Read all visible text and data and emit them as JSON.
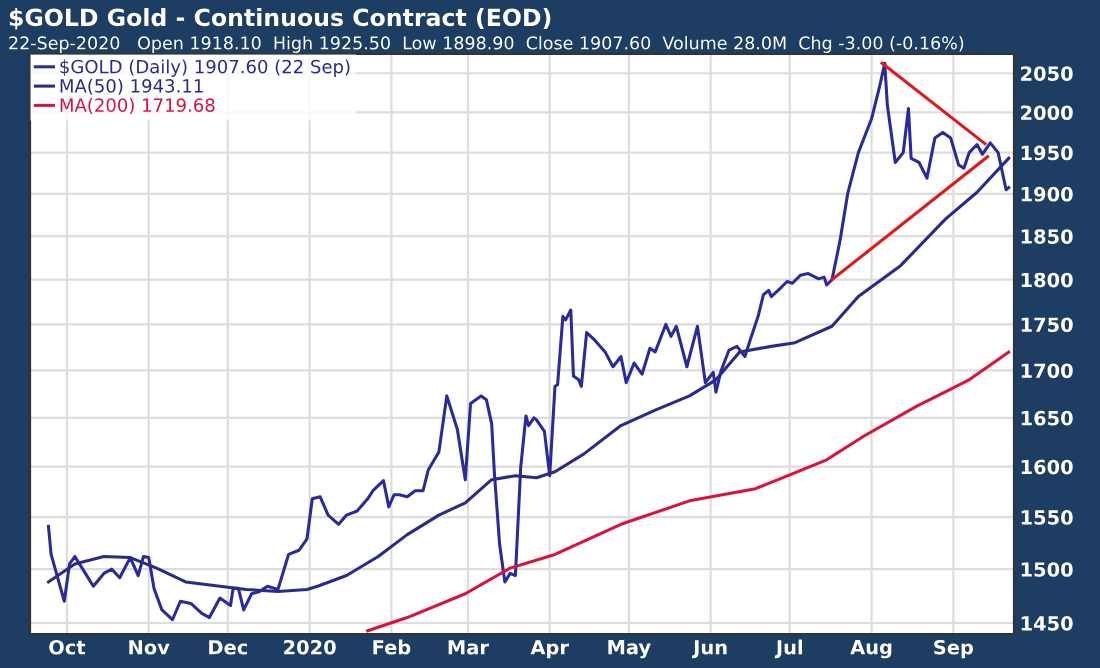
{
  "chart_data": {
    "type": "line",
    "title": "$GOLD Gold - Continuous Contract (EOD)",
    "subtitle": "22-Sep-2020   Open 1918.10  High 1925.50  Low 1898.90  Close 1907.60  Volume 28.0M  Chg -3.00 (-0.16%)",
    "log": "y",
    "grid": true,
    "legend": "top left",
    "marker": "none",
    "line_style": "solid",
    "xlim": [
      "2019-09-17",
      "2020-09-24"
    ],
    "ylim": [
      1440,
      2075
    ],
    "xticks": [
      {
        "value": "2019-10-01",
        "label": "Oct"
      },
      {
        "value": "2019-11-01",
        "label": "Nov"
      },
      {
        "value": "2019-12-01",
        "label": "Dec"
      },
      {
        "value": "2020-01-01",
        "label": "2020"
      },
      {
        "value": "2020-02-01",
        "label": "Feb"
      },
      {
        "value": "2020-03-01",
        "label": "Mar"
      },
      {
        "value": "2020-04-01",
        "label": "Apr"
      },
      {
        "value": "2020-05-01",
        "label": "May"
      },
      {
        "value": "2020-06-01",
        "label": "Jun"
      },
      {
        "value": "2020-07-01",
        "label": "Jul"
      },
      {
        "value": "2020-08-01",
        "label": "Aug"
      },
      {
        "value": "2020-09-01",
        "label": "Sep"
      }
    ],
    "yticks": [
      1450,
      1500,
      1550,
      1600,
      1650,
      1700,
      1750,
      1800,
      1850,
      1900,
      1950,
      2000,
      2050
    ],
    "series": [
      {
        "name": "$GOLD (Daily) 1907.60 (22 Sep)",
        "color": "#2a2a9a",
        "x": [
          "2019-09-24",
          "2019-09-25",
          "2019-09-30",
          "2019-10-02",
          "2019-10-04",
          "2019-10-08",
          "2019-10-11",
          "2019-10-15",
          "2019-10-18",
          "2019-10-21",
          "2019-10-25",
          "2019-10-28",
          "2019-10-30",
          "2019-11-01",
          "2019-11-03",
          "2019-11-06",
          "2019-11-10",
          "2019-11-13",
          "2019-11-17",
          "2019-11-21",
          "2019-11-24",
          "2019-11-28",
          "2019-12-02",
          "2019-12-03",
          "2019-12-05",
          "2019-12-07",
          "2019-12-10",
          "2019-12-13",
          "2019-12-16",
          "2019-12-20",
          "2019-12-24",
          "2019-12-28",
          "2019-12-31",
          "2020-01-02",
          "2020-01-05",
          "2020-01-08",
          "2020-01-12",
          "2020-01-15",
          "2020-01-19",
          "2020-01-23",
          "2020-01-25",
          "2020-01-29",
          "2020-01-31",
          "2020-02-02",
          "2020-02-04",
          "2020-02-07",
          "2020-02-10",
          "2020-02-13",
          "2020-02-15",
          "2020-02-19",
          "2020-02-22",
          "2020-02-26",
          "2020-02-29",
          "2020-03-02",
          "2020-03-06",
          "2020-03-08",
          "2020-03-10",
          "2020-03-11",
          "2020-03-13",
          "2020-03-15",
          "2020-03-17",
          "2020-03-19",
          "2020-03-21",
          "2020-03-23",
          "2020-03-24",
          "2020-03-26",
          "2020-03-27",
          "2020-03-30",
          "2020-04-01",
          "2020-04-03",
          "2020-04-04",
          "2020-04-06",
          "2020-04-07",
          "2020-04-09",
          "2020-04-10",
          "2020-04-12",
          "2020-04-13",
          "2020-04-15",
          "2020-04-18",
          "2020-04-22",
          "2020-04-25",
          "2020-04-28",
          "2020-04-30",
          "2020-05-03",
          "2020-05-06",
          "2020-05-09",
          "2020-05-11",
          "2020-05-15",
          "2020-05-17",
          "2020-05-19",
          "2020-05-23",
          "2020-05-27",
          "2020-05-30",
          "2020-06-02",
          "2020-06-03",
          "2020-06-05",
          "2020-06-08",
          "2020-06-11",
          "2020-06-14",
          "2020-06-16",
          "2020-06-19",
          "2020-06-21",
          "2020-06-23",
          "2020-06-24",
          "2020-06-28",
          "2020-06-30",
          "2020-07-02",
          "2020-07-05",
          "2020-07-08",
          "2020-07-12",
          "2020-07-14",
          "2020-07-15",
          "2020-07-17",
          "2020-07-20",
          "2020-07-23",
          "2020-07-27",
          "2020-08-01",
          "2020-08-04",
          "2020-08-06",
          "2020-08-07",
          "2020-08-10",
          "2020-08-13",
          "2020-08-15",
          "2020-08-16",
          "2020-08-19",
          "2020-08-22",
          "2020-08-25",
          "2020-08-28",
          "2020-08-31",
          "2020-09-03",
          "2020-09-05",
          "2020-09-07",
          "2020-09-10",
          "2020-09-12",
          "2020-09-15",
          "2020-09-18",
          "2020-09-21",
          "2020-09-22"
        ],
        "values": [
          1541,
          1514,
          1470,
          1505,
          1512,
          1496,
          1484,
          1496,
          1500,
          1492,
          1511,
          1494,
          1512,
          1511,
          1482,
          1462,
          1453,
          1470,
          1468,
          1459,
          1455,
          1473,
          1466,
          1482,
          1482,
          1462,
          1477,
          1479,
          1484,
          1481,
          1514,
          1518,
          1529,
          1568,
          1570,
          1552,
          1543,
          1552,
          1556,
          1568,
          1576,
          1586,
          1560,
          1572,
          1572,
          1570,
          1576,
          1576,
          1597,
          1615,
          1673,
          1638,
          1587,
          1665,
          1673,
          1669,
          1644,
          1595,
          1524,
          1488,
          1496,
          1494,
          1599,
          1652,
          1642,
          1650,
          1648,
          1636,
          1591,
          1683,
          1685,
          1759,
          1755,
          1766,
          1694,
          1690,
          1683,
          1741,
          1733,
          1720,
          1704,
          1715,
          1687,
          1708,
          1696,
          1724,
          1720,
          1750,
          1737,
          1748,
          1704,
          1748,
          1687,
          1698,
          1677,
          1700,
          1722,
          1726,
          1715,
          1733,
          1759,
          1783,
          1788,
          1781,
          1792,
          1798,
          1796,
          1805,
          1807,
          1801,
          1803,
          1794,
          1800,
          1844,
          1901,
          1950,
          1992,
          2032,
          2063,
          2009,
          1938,
          1950,
          2005,
          1943,
          1938,
          1919,
          1968,
          1975,
          1968,
          1935,
          1931,
          1950,
          1960,
          1948,
          1962,
          1950,
          1905,
          1907.6
        ]
      },
      {
        "name": "MA(50) 1943.11",
        "color": "#2a2a8a",
        "x": [
          "2019-09-24",
          "2019-10-04",
          "2019-10-15",
          "2019-10-25",
          "2019-11-04",
          "2019-11-15",
          "2019-11-28",
          "2019-12-08",
          "2019-12-20",
          "2019-12-31",
          "2020-01-04",
          "2020-01-15",
          "2020-01-27",
          "2020-02-07",
          "2020-02-19",
          "2020-02-29",
          "2020-03-10",
          "2020-03-19",
          "2020-03-27",
          "2020-04-03",
          "2020-04-14",
          "2020-04-28",
          "2020-05-11",
          "2020-05-24",
          "2020-06-03",
          "2020-06-12",
          "2020-06-24",
          "2020-07-03",
          "2020-07-17",
          "2020-07-27",
          "2020-08-12",
          "2020-08-29",
          "2020-09-10",
          "2020-09-22"
        ],
        "values": [
          1488,
          1505,
          1512,
          1511,
          1501,
          1488,
          1484,
          1481,
          1479,
          1481,
          1484,
          1494,
          1512,
          1533,
          1552,
          1564,
          1587,
          1591,
          1589,
          1595,
          1613,
          1642,
          1658,
          1673,
          1690,
          1720,
          1726,
          1730,
          1748,
          1781,
          1816,
          1870,
          1902,
          1943.11
        ]
      },
      {
        "name": "MA(200) 1719.68",
        "color": "#d8143c",
        "x": [
          "2020-01-23",
          "2020-02-07",
          "2020-02-29",
          "2020-03-17",
          "2020-04-03",
          "2020-04-28",
          "2020-05-24",
          "2020-06-18",
          "2020-07-15",
          "2020-07-29",
          "2020-08-18",
          "2020-09-07",
          "2020-09-22"
        ],
        "values": [
          1443,
          1455,
          1477,
          1501,
          1514,
          1543,
          1566,
          1578,
          1607,
          1631,
          1662,
          1690,
          1719.68
        ]
      },
      {
        "color": "#e01818",
        "x": [
          "2020-08-05",
          "2020-09-13"
        ],
        "values": [
          2063,
          1961
        ]
      },
      {
        "color": "#e01818",
        "x": [
          "2020-07-17",
          "2020-09-14"
        ],
        "values": [
          1800,
          1945
        ]
      }
    ]
  }
}
